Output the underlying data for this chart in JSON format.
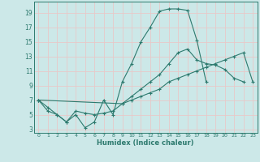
{
  "xlabel": "Humidex (Indice chaleur)",
  "bg_color": "#cce8e8",
  "grid_color": "#e8c8c8",
  "line_color": "#2d7a6e",
  "xlim": [
    -0.5,
    23.5
  ],
  "ylim": [
    2.5,
    20.5
  ],
  "xticks": [
    0,
    1,
    2,
    3,
    4,
    5,
    6,
    7,
    8,
    9,
    10,
    11,
    12,
    13,
    14,
    15,
    16,
    17,
    18,
    19,
    20,
    21,
    22,
    23
  ],
  "yticks": [
    3,
    5,
    7,
    9,
    11,
    13,
    15,
    17,
    19
  ],
  "series1_x": [
    0,
    1,
    2,
    3,
    4,
    5,
    6,
    7,
    8,
    9,
    10,
    11,
    12,
    13,
    14,
    15,
    16,
    17,
    18
  ],
  "series1_y": [
    7,
    6,
    5,
    4,
    5,
    3.2,
    4,
    7,
    5,
    9.5,
    12,
    15,
    17,
    19.2,
    19.5,
    19.5,
    19.3,
    15.2,
    9.5
  ],
  "series2_x": [
    0,
    1,
    2,
    3,
    4,
    5,
    6,
    7,
    8,
    9,
    10,
    11,
    12,
    13,
    14,
    15,
    16,
    17,
    18,
    19,
    20,
    21,
    22
  ],
  "series2_y": [
    7,
    5.5,
    5,
    4,
    5.5,
    5.2,
    5,
    5.2,
    5.5,
    6.5,
    7.5,
    8.5,
    9.5,
    10.5,
    12,
    13.5,
    14,
    12.5,
    12,
    11.8,
    11.2,
    10,
    9.5
  ],
  "series3_x": [
    0,
    9,
    10,
    11,
    12,
    13,
    14,
    15,
    16,
    17,
    18,
    19,
    20,
    21,
    22,
    23
  ],
  "series3_y": [
    7,
    6.5,
    7,
    7.5,
    8,
    8.5,
    9.5,
    10,
    10.5,
    11,
    11.5,
    12,
    12.5,
    13,
    13.5,
    9.5
  ]
}
